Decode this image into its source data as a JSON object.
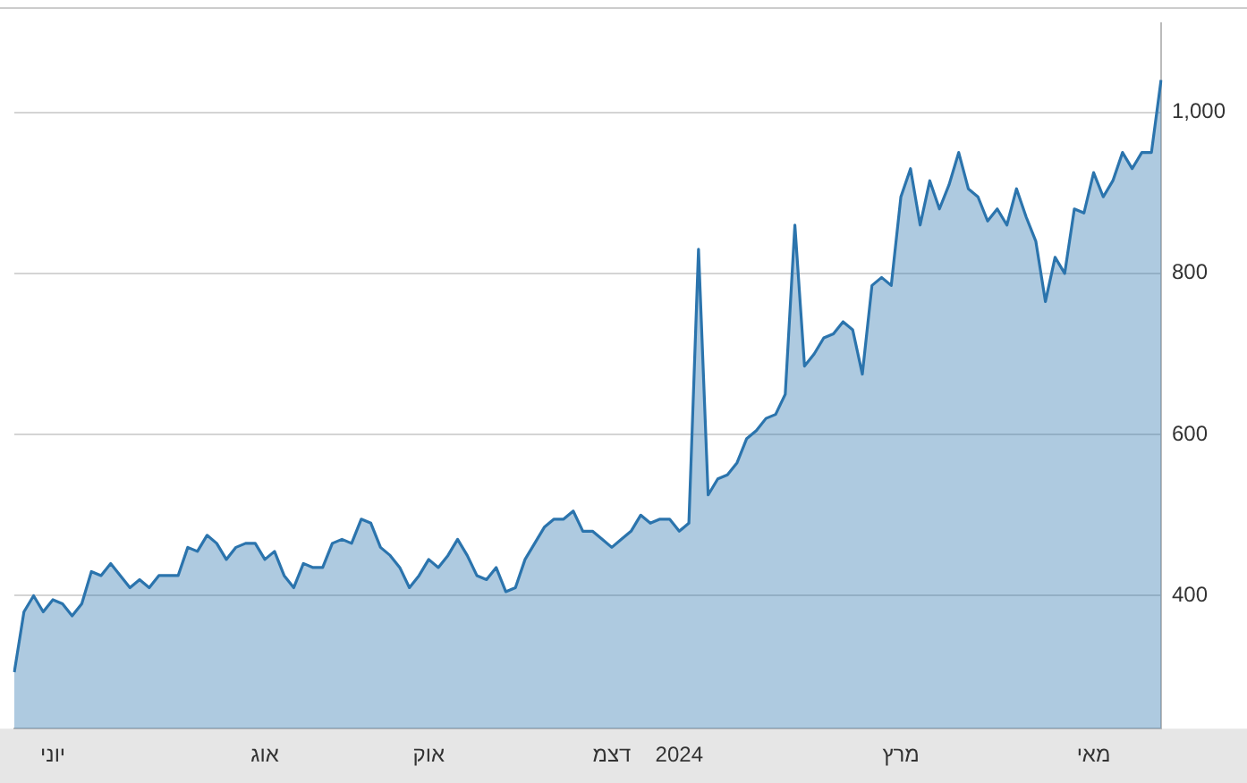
{
  "chart_data": {
    "type": "area",
    "color": "#2b74ad",
    "categories": [
      null,
      null,
      null,
      null,
      "יוני",
      null,
      null,
      null,
      null,
      null,
      null,
      null,
      null,
      null,
      null,
      null,
      null,
      null,
      null,
      null,
      null,
      null,
      null,
      null,
      null,
      null,
      "אוג",
      null,
      null,
      null,
      null,
      null,
      null,
      null,
      null,
      null,
      null,
      null,
      null,
      null,
      null,
      null,
      null,
      "אוק",
      null,
      null,
      null,
      null,
      null,
      null,
      null,
      null,
      null,
      null,
      null,
      null,
      null,
      null,
      null,
      null,
      null,
      null,
      "דצמ",
      null,
      null,
      null,
      null,
      null,
      null,
      "2024",
      null,
      null,
      null,
      null,
      null,
      null,
      null,
      null,
      null,
      null,
      null,
      null,
      null,
      null,
      null,
      null,
      null,
      null,
      null,
      null,
      null,
      null,
      "מרץ",
      null,
      null,
      null,
      null,
      null,
      null,
      null,
      null,
      null,
      null,
      null,
      null,
      null,
      null,
      null,
      null,
      null,
      null,
      null,
      "מאי",
      null,
      null,
      null,
      null,
      null,
      null,
      null
    ],
    "values": [
      305,
      380,
      400,
      380,
      395,
      390,
      375,
      390,
      430,
      425,
      440,
      425,
      410,
      420,
      410,
      425,
      425,
      425,
      460,
      455,
      475,
      465,
      445,
      460,
      465,
      465,
      445,
      455,
      425,
      410,
      440,
      435,
      435,
      465,
      470,
      465,
      495,
      490,
      460,
      450,
      435,
      410,
      425,
      445,
      435,
      450,
      470,
      450,
      425,
      420,
      435,
      405,
      410,
      445,
      465,
      485,
      495,
      495,
      505,
      480,
      480,
      470,
      460,
      470,
      480,
      500,
      490,
      495,
      495,
      480,
      490,
      830,
      525,
      545,
      550,
      565,
      595,
      605,
      620,
      625,
      650,
      860,
      685,
      700,
      720,
      725,
      740,
      730,
      675,
      785,
      795,
      785,
      895,
      930,
      860,
      915,
      880,
      910,
      950,
      905,
      895,
      865,
      880,
      860,
      905,
      870,
      840,
      765,
      820,
      800,
      880,
      875,
      925,
      895,
      915,
      950,
      930,
      950,
      950,
      1040
    ],
    "ylim": [
      235,
      1110
    ],
    "yticks": [
      400,
      600,
      800,
      {
        "value": 1000,
        "label": "1,000"
      }
    ],
    "grid": "y",
    "legend": false,
    "marker": "none"
  }
}
